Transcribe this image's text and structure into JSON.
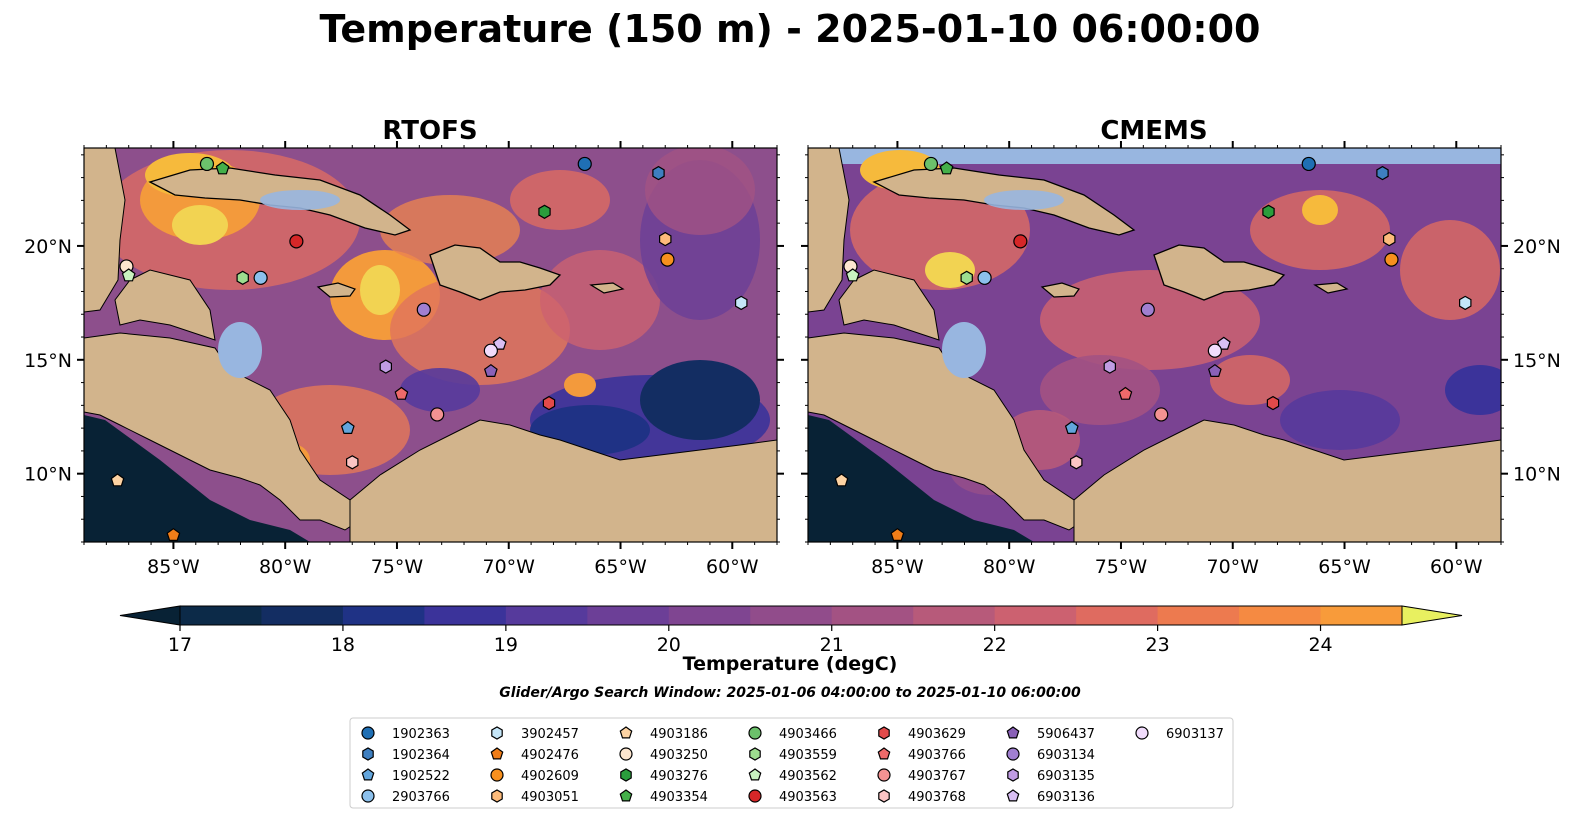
{
  "title": "Temperature (150 m) - 2025-01-10 06:00:00",
  "colors": {
    "land": "#d2b48c",
    "shallow": "#98b6e0",
    "coast": "#000000"
  },
  "chart_data": [
    {
      "type": "heatmap",
      "title": "RTOFS",
      "x_ticks": [
        "85°W",
        "80°W",
        "75°W",
        "70°W",
        "65°W",
        "60°W"
      ],
      "x_tick_values": [
        -85,
        -80,
        -75,
        -70,
        -65,
        -60
      ],
      "y_ticks": [
        "20°N",
        "15°N",
        "10°N"
      ],
      "y_tick_values": [
        20,
        15,
        10
      ],
      "xlim": [
        -89,
        -58
      ],
      "ylim": [
        7,
        24.3
      ],
      "y_tick_side": "left"
    },
    {
      "type": "heatmap",
      "title": "CMEMS",
      "x_ticks": [
        "85°W",
        "80°W",
        "75°W",
        "70°W",
        "65°W",
        "60°W"
      ],
      "x_tick_values": [
        -85,
        -80,
        -75,
        -70,
        -65,
        -60
      ],
      "y_ticks": [
        "20°N",
        "15°N",
        "10°N"
      ],
      "y_tick_values": [
        20,
        15,
        10
      ],
      "xlim": [
        -89,
        -58
      ],
      "ylim": [
        7,
        24.3
      ],
      "y_tick_side": "right"
    }
  ],
  "colorbar": {
    "label": "Temperature (degC)",
    "ticks": [
      "17",
      "18",
      "19",
      "20",
      "21",
      "22",
      "23",
      "24"
    ],
    "tick_values": [
      17,
      18,
      19,
      20,
      21,
      22,
      23,
      24
    ],
    "range": [
      17,
      24.5
    ],
    "step": 0.5,
    "colors": [
      "#0c2a48",
      "#132d62",
      "#1f3285",
      "#3b339a",
      "#563a9c",
      "#6c3f97",
      "#7f4591",
      "#914c8b",
      "#a35283",
      "#b75a7a",
      "#cc6170",
      "#df6b60",
      "#ed7a4f",
      "#f58a42",
      "#f89b3a",
      "#f6ad38",
      "#f3c442"
    ],
    "extend_low": "#082235",
    "extend_high": "#e8f060"
  },
  "search_window": "Glider/Argo Search Window: 2025-01-06 04:00:00 to 2025-01-10 06:00:00",
  "platforms": [
    {
      "id": "1902363",
      "marker": "circle",
      "color": "#1f6fb4",
      "lon": -66.6,
      "lat": 23.6
    },
    {
      "id": "1902364",
      "marker": "hexagon",
      "color": "#3e7fc0",
      "lon": -63.3,
      "lat": 23.2
    },
    {
      "id": "1902522",
      "marker": "pentagon",
      "color": "#62a5dc",
      "lon": -77.2,
      "lat": 12.0
    },
    {
      "id": "2903766",
      "marker": "circle",
      "color": "#8cc0ec",
      "lon": -81.1,
      "lat": 18.6
    },
    {
      "id": "3902457",
      "marker": "hexagon",
      "color": "#c5e6f8",
      "lon": -59.6,
      "lat": 17.5
    },
    {
      "id": "4902476",
      "marker": "pentagon",
      "color": "#f07d18",
      "lon": -85.0,
      "lat": 7.3
    },
    {
      "id": "4902609",
      "marker": "circle",
      "color": "#f7901e",
      "lon": -62.9,
      "lat": 19.4
    },
    {
      "id": "4903051",
      "marker": "hexagon",
      "color": "#fdbb7b",
      "lon": -63.0,
      "lat": 20.3
    },
    {
      "id": "4903186",
      "marker": "pentagon",
      "color": "#fdd3a3",
      "lon": -87.5,
      "lat": 9.7
    },
    {
      "id": "4903250",
      "marker": "circle",
      "color": "#fde6cf",
      "lon": -87.1,
      "lat": 19.1
    },
    {
      "id": "4903276",
      "marker": "hexagon",
      "color": "#2a9d3c",
      "lon": -68.4,
      "lat": 21.5
    },
    {
      "id": "4903354",
      "marker": "pentagon",
      "color": "#44b04a",
      "lon": -82.8,
      "lat": 23.4
    },
    {
      "id": "4903466",
      "marker": "circle",
      "color": "#6cc16b",
      "lon": -83.5,
      "lat": 23.6
    },
    {
      "id": "4903559",
      "marker": "hexagon",
      "color": "#9ddd8f",
      "lon": -81.9,
      "lat": 18.6
    },
    {
      "id": "4903562",
      "marker": "pentagon",
      "color": "#c9f2c0",
      "lon": -87.0,
      "lat": 18.7
    },
    {
      "id": "4903563",
      "marker": "circle",
      "color": "#d62728",
      "lon": -79.5,
      "lat": 20.2
    },
    {
      "id": "4903629",
      "marker": "hexagon",
      "color": "#e24a4a",
      "lon": -68.2,
      "lat": 13.1
    },
    {
      "id": "4903766",
      "marker": "pentagon",
      "color": "#ee6a6a",
      "lon": -74.8,
      "lat": 13.5
    },
    {
      "id": "4903767",
      "marker": "circle",
      "color": "#f39292",
      "lon": -73.2,
      "lat": 12.6
    },
    {
      "id": "4903768",
      "marker": "hexagon",
      "color": "#fbc4c4",
      "lon": -77.0,
      "lat": 10.5
    },
    {
      "id": "5906437",
      "marker": "pentagon",
      "color": "#8a61b8",
      "lon": -70.8,
      "lat": 14.5
    },
    {
      "id": "6903134",
      "marker": "circle",
      "color": "#a07fd0",
      "lon": -73.8,
      "lat": 17.2
    },
    {
      "id": "6903135",
      "marker": "hexagon",
      "color": "#c09ce3",
      "lon": -75.5,
      "lat": 14.7
    },
    {
      "id": "6903136",
      "marker": "pentagon",
      "color": "#d9bff3",
      "lon": -70.4,
      "lat": 15.7
    },
    {
      "id": "6903137",
      "marker": "circle",
      "color": "#f1dcfc",
      "lon": -70.8,
      "lat": 15.4
    }
  ]
}
